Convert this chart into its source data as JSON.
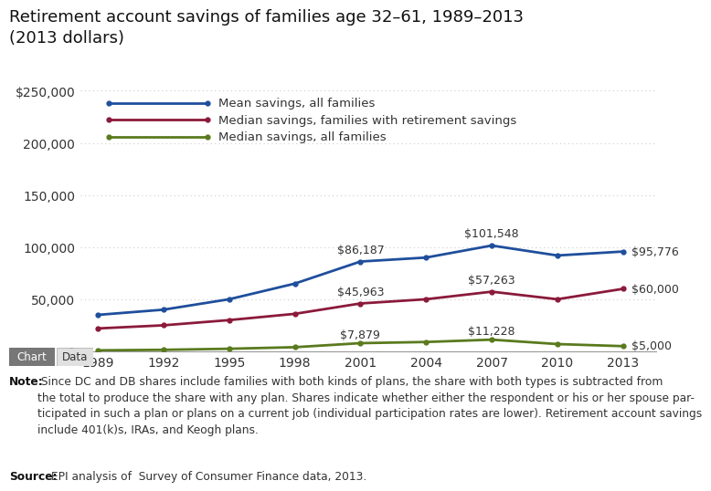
{
  "title_line1": "Retirement account savings of families age 32–61, 1989–2013",
  "title_line2": "(2013 dollars)",
  "years": [
    1989,
    1992,
    1995,
    1998,
    2001,
    2004,
    2007,
    2010,
    2013
  ],
  "mean_all": [
    35000,
    40000,
    50000,
    65000,
    86187,
    90000,
    101548,
    92000,
    95776
  ],
  "median_with": [
    22000,
    25000,
    30000,
    36000,
    45963,
    50000,
    57263,
    50000,
    60000
  ],
  "median_all": [
    1000,
    1500,
    2500,
    4000,
    7879,
    9000,
    11228,
    7000,
    5000
  ],
  "mean_color": "#1f4e9c",
  "median_with_color": "#8b1a3a",
  "median_all_color": "#5a7a1e",
  "legend_labels": [
    "Mean savings, all families",
    "Median savings, families with retirement savings",
    "Median savings, all families"
  ],
  "ann_years": [
    2001,
    2007,
    2013
  ],
  "mean_ann_vals": [
    86187,
    101548,
    95776
  ],
  "mean_ann_labels": [
    "$86,187",
    "$101,548",
    "$95,776"
  ],
  "mwith_ann_vals": [
    45963,
    57263,
    60000
  ],
  "mwith_ann_labels": [
    "$45,963",
    "$57,263",
    "$60,000"
  ],
  "mall_ann_vals": [
    7879,
    11228,
    5000
  ],
  "mall_ann_labels": [
    "$7,879",
    "$11,228",
    "$5,000"
  ],
  "ylim": [
    0,
    260000
  ],
  "yticks": [
    0,
    50000,
    100000,
    150000,
    200000,
    250000
  ],
  "note_bold": "Note:",
  "note_text": " Since DC and DB shares include families with both kinds of plans, the share with both types is subtracted from\nthe total to produce the share with any plan. Shares indicate whether either the respondent or his or her spouse par-\nticipated in such a plan or plans on a current job (individual participation rates are lower). Retirement account savings\ninclude 401(k)s, IRAs, and Keogh plans.",
  "source_bold": "Source:",
  "source_text": " EPI analysis of  Survey of Consumer Finance data, 2013.",
  "background_color": "#ffffff",
  "grid_color": "#cccccc",
  "line_width": 2.0,
  "ann_fontsize": 9,
  "tick_fontsize": 10
}
